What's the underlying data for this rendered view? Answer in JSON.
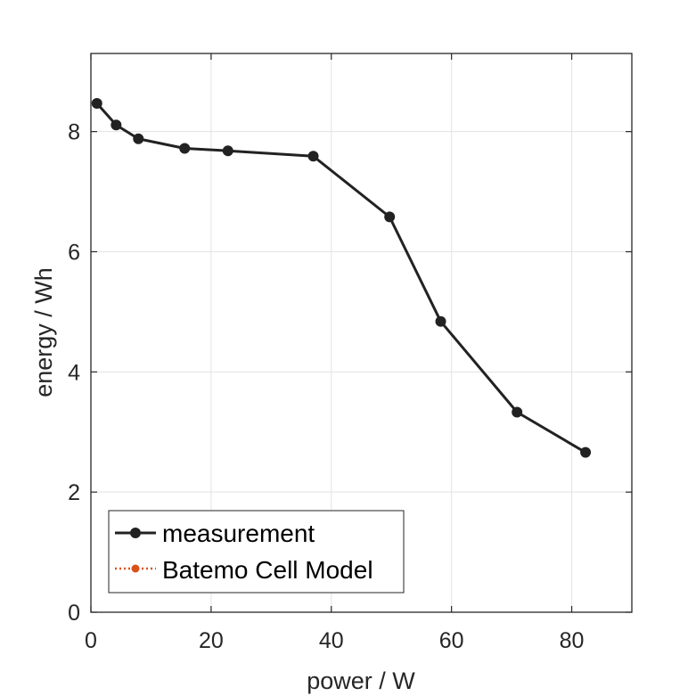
{
  "chart_data": {
    "type": "line",
    "xlabel": "power / W",
    "ylabel": "energy / Wh",
    "xlim": [
      0,
      90
    ],
    "ylim": [
      0,
      9.3
    ],
    "xticks": [
      "0",
      "20",
      "40",
      "60",
      "80"
    ],
    "yticks": [
      "0",
      "2",
      "4",
      "6",
      "8"
    ],
    "grid": true,
    "legend_position": "bottom-left",
    "series": [
      {
        "name": "measurement",
        "color": "#222222",
        "marker": "circle",
        "line_style": "solid",
        "x": [
          1.0,
          4.2,
          7.9,
          15.6,
          22.8,
          37.0,
          49.7,
          58.2,
          70.9,
          82.3
        ],
        "y": [
          8.47,
          8.11,
          7.88,
          7.72,
          7.68,
          7.59,
          6.58,
          4.84,
          3.33,
          2.66
        ]
      },
      {
        "name": "Batemo Cell Model",
        "color": "#d95319",
        "marker": "circle",
        "line_style": "dotted",
        "x": [],
        "y": []
      }
    ]
  }
}
